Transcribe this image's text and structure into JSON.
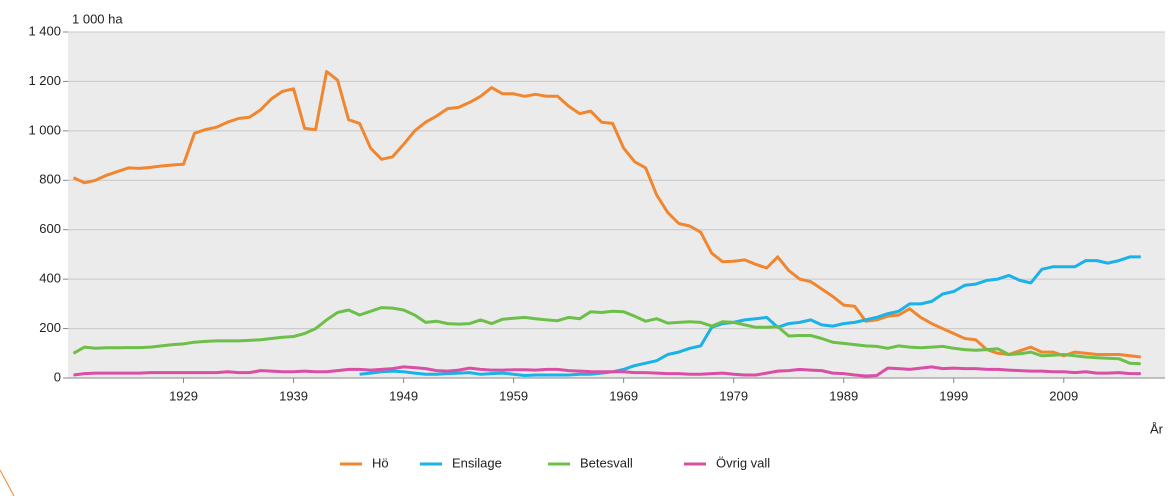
{
  "chart_data": {
    "type": "line",
    "y_axis_label": "1 000 ha",
    "x_axis_label": "År",
    "x": [
      1919,
      1920,
      1921,
      1922,
      1923,
      1924,
      1925,
      1926,
      1927,
      1928,
      1929,
      1930,
      1931,
      1932,
      1933,
      1934,
      1935,
      1936,
      1937,
      1938,
      1939,
      1940,
      1941,
      1942,
      1943,
      1944,
      1945,
      1946,
      1947,
      1948,
      1949,
      1950,
      1951,
      1952,
      1953,
      1954,
      1955,
      1956,
      1957,
      1958,
      1959,
      1960,
      1961,
      1962,
      1963,
      1964,
      1965,
      1966,
      1967,
      1968,
      1969,
      1970,
      1971,
      1972,
      1973,
      1974,
      1975,
      1976,
      1977,
      1978,
      1979,
      1980,
      1981,
      1982,
      1983,
      1984,
      1985,
      1986,
      1987,
      1988,
      1989,
      1990,
      1991,
      1992,
      1993,
      1994,
      1995,
      1996,
      1997,
      1998,
      1999,
      2000,
      2001,
      2002,
      2003,
      2004,
      2005,
      2006,
      2007,
      2008,
      2009,
      2010,
      2011,
      2012,
      2013,
      2014,
      2015,
      2016
    ],
    "series": [
      {
        "name": "Hö",
        "color": "#f0862f",
        "values": [
          810,
          790,
          800,
          820,
          835,
          850,
          848,
          852,
          858,
          862,
          865,
          990,
          1005,
          1015,
          1035,
          1050,
          1055,
          1085,
          1130,
          1160,
          1170,
          1010,
          1005,
          1240,
          1205,
          1045,
          1030,
          930,
          885,
          895,
          945,
          1000,
          1035,
          1060,
          1090,
          1095,
          1115,
          1140,
          1175,
          1150,
          1150,
          1140,
          1148,
          1140,
          1140,
          1100,
          1070,
          1080,
          1035,
          1030,
          930,
          875,
          850,
          740,
          670,
          625,
          615,
          590,
          505,
          470,
          472,
          478,
          460,
          445,
          490,
          435,
          400,
          390,
          360,
          330,
          295,
          290,
          230,
          235,
          250,
          255,
          280,
          245,
          220,
          200,
          180,
          160,
          155,
          115,
          100,
          95,
          110,
          125,
          105,
          105,
          90,
          105,
          100,
          95,
          95,
          95,
          90,
          85
        ]
      },
      {
        "name": "Ensilage",
        "color": "#1ab2e8",
        "values": [
          null,
          null,
          null,
          null,
          null,
          null,
          null,
          null,
          null,
          null,
          null,
          null,
          null,
          null,
          null,
          null,
          null,
          null,
          null,
          null,
          null,
          null,
          null,
          null,
          null,
          null,
          15,
          20,
          25,
          28,
          25,
          20,
          15,
          15,
          18,
          20,
          22,
          15,
          18,
          20,
          15,
          10,
          12,
          12,
          12,
          12,
          15,
          15,
          20,
          25,
          35,
          50,
          60,
          70,
          95,
          105,
          120,
          130,
          205,
          220,
          225,
          235,
          240,
          245,
          205,
          220,
          225,
          235,
          215,
          210,
          220,
          225,
          235,
          245,
          260,
          270,
          300,
          300,
          310,
          340,
          350,
          375,
          380,
          395,
          400,
          415,
          395,
          385,
          440,
          450,
          450,
          450,
          475,
          475,
          465,
          475,
          490,
          490
        ]
      },
      {
        "name": "Betesvall",
        "color": "#6cc04a",
        "values": [
          100,
          125,
          120,
          122,
          122,
          123,
          123,
          125,
          130,
          135,
          138,
          145,
          148,
          150,
          150,
          150,
          152,
          155,
          160,
          165,
          168,
          180,
          200,
          235,
          265,
          275,
          255,
          270,
          285,
          283,
          275,
          255,
          225,
          230,
          220,
          218,
          220,
          235,
          220,
          238,
          242,
          245,
          240,
          235,
          232,
          245,
          240,
          268,
          265,
          270,
          268,
          250,
          230,
          240,
          222,
          225,
          228,
          225,
          210,
          228,
          225,
          215,
          205,
          205,
          208,
          170,
          172,
          172,
          160,
          145,
          140,
          135,
          130,
          128,
          120,
          130,
          125,
          122,
          125,
          128,
          120,
          115,
          112,
          115,
          118,
          95,
          98,
          105,
          90,
          92,
          95,
          90,
          85,
          82,
          80,
          78,
          60,
          58
        ]
      },
      {
        "name": "Övrig vall",
        "color": "#d94fa6",
        "values": [
          12,
          18,
          20,
          20,
          20,
          20,
          20,
          22,
          22,
          22,
          22,
          22,
          22,
          22,
          25,
          22,
          22,
          30,
          28,
          25,
          25,
          28,
          25,
          25,
          30,
          35,
          35,
          32,
          35,
          38,
          45,
          42,
          38,
          30,
          28,
          32,
          40,
          35,
          32,
          32,
          33,
          33,
          32,
          35,
          35,
          30,
          28,
          26,
          25,
          25,
          25,
          22,
          22,
          20,
          18,
          18,
          15,
          15,
          18,
          20,
          15,
          12,
          12,
          20,
          28,
          30,
          35,
          32,
          30,
          20,
          18,
          12,
          8,
          10,
          40,
          38,
          35,
          40,
          45,
          38,
          40,
          38,
          38,
          35,
          35,
          32,
          30,
          28,
          28,
          25,
          25,
          22,
          25,
          20,
          20,
          22,
          18,
          18
        ]
      }
    ],
    "xlim": [
      1918.5,
      2018.2
    ],
    "xticks": [
      1929,
      1939,
      1949,
      1959,
      1969,
      1979,
      1989,
      1999,
      2009
    ],
    "ylim": [
      0,
      1400
    ],
    "yticks": [
      0,
      200,
      400,
      600,
      800,
      {
        "value": 1000,
        "label": "1 000"
      },
      {
        "value": 1200,
        "label": "1 200"
      },
      {
        "value": 1400,
        "label": "1 400"
      }
    ],
    "grid": true,
    "legend": "bottom"
  }
}
